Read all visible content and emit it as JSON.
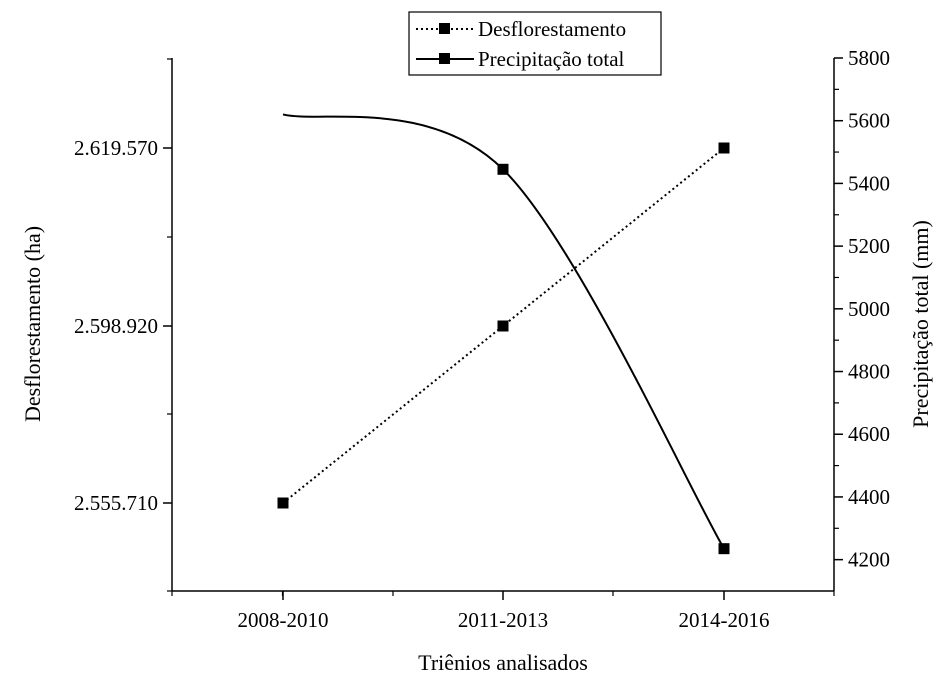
{
  "chart_data": {
    "type": "line",
    "categories": [
      "2008-2010",
      "2011-2013",
      "2014-2016"
    ],
    "xlabel": "Triênios analisados",
    "ylabel_left": "Desflorestamento (ha)",
    "ylabel_right": "Precipitação total (mm)",
    "left_axis": {
      "ticks": [
        2555710,
        2598920,
        2619570
      ],
      "tick_labels": [
        "2.555.710",
        "2.598.920",
        "2.619.570"
      ]
    },
    "right_axis": {
      "ylim": [
        4100,
        5800
      ],
      "ticks": [
        4200,
        4400,
        4600,
        4800,
        5000,
        5200,
        5400,
        5600,
        5800
      ],
      "tick_labels": [
        "4200",
        "4400",
        "4600",
        "4800",
        "5000",
        "5200",
        "5400",
        "5600",
        "5800"
      ]
    },
    "series": [
      {
        "name": "Desflorestamento",
        "axis": "left",
        "style": "dotted",
        "values": [
          2555710,
          2598920,
          2619570
        ]
      },
      {
        "name": "Precipitação total",
        "axis": "right",
        "style": "solid",
        "smooth": true,
        "values": [
          5620,
          5445,
          4235
        ]
      }
    ],
    "legend": "top-center",
    "grid": false
  }
}
